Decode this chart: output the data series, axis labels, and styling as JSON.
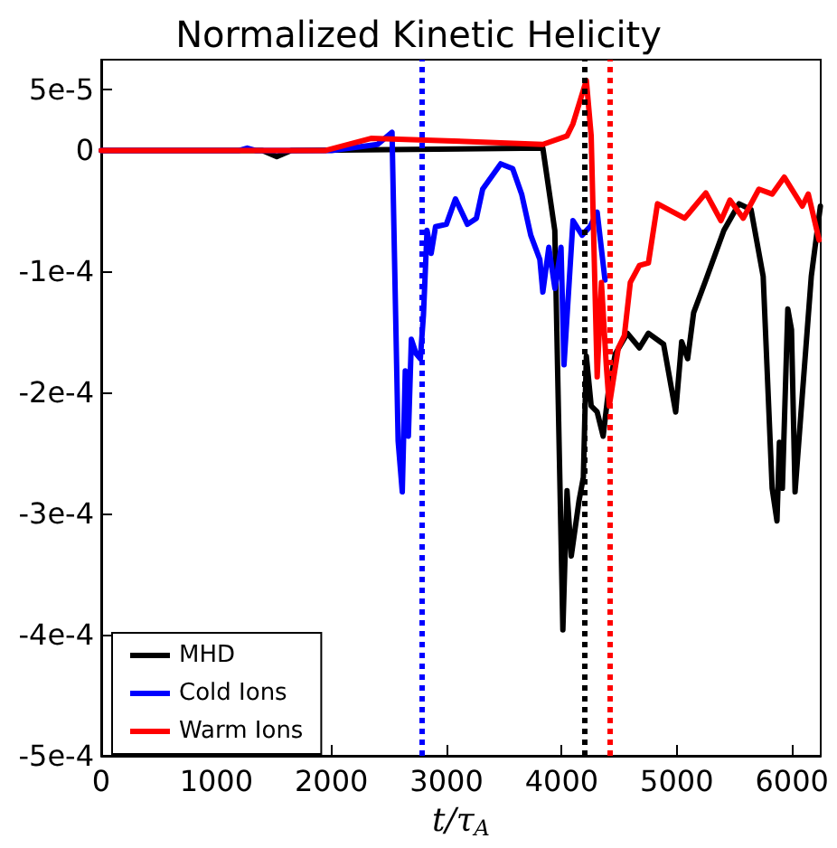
{
  "chart_data": {
    "type": "line",
    "title": "Normalized Kinetic Helicity",
    "xlabel": "t/τ$_{A}$",
    "series": [
      {
        "name": "MHD",
        "color": "#000000",
        "x": [
          0,
          1400,
          1525,
          1650,
          3836,
          3940,
          4010,
          4046,
          4083,
          4151,
          4188,
          4214,
          4256,
          4308,
          4360,
          4403,
          4465,
          4570,
          4675,
          4753,
          4885,
          4990,
          5042,
          5094,
          5146,
          5252,
          5409,
          5540,
          5645,
          5750,
          5828,
          5870,
          5891,
          5917,
          5964,
          5996,
          6027,
          6090,
          6168,
          6247
        ],
        "values": [
          0,
          0,
          -5e-06,
          0,
          2e-06,
          -6.6e-05,
          -0.000396,
          -0.000281,
          -0.000335,
          -0.000289,
          -0.00027,
          -0.00017,
          -0.000211,
          -0.000216,
          -0.000236,
          -0.000201,
          -0.000168,
          -0.000151,
          -0.000163,
          -0.000151,
          -0.00016,
          -0.000216,
          -0.000158,
          -0.000172,
          -0.000134,
          -0.000107,
          -6.6e-05,
          -4.4e-05,
          -4.9e-05,
          -0.000104,
          -0.000279,
          -0.000306,
          -0.000241,
          -0.000279,
          -0.000131,
          -0.000148,
          -0.000282,
          -0.000202,
          -0.000104,
          -4.6e-05
        ]
      },
      {
        "name": "Cold Ions",
        "color": "#0000ff",
        "x": [
          0,
          1200,
          1268,
          1340,
          2000,
          2400,
          2526,
          2579,
          2615,
          2641,
          2668,
          2694,
          2736,
          2772,
          2799,
          2830,
          2866,
          2904,
          2998,
          3077,
          3181,
          3259,
          3313,
          3470,
          3574,
          3652,
          3731,
          3810,
          3836,
          3888,
          3941,
          3994,
          4020,
          4098,
          4177,
          4245,
          4308,
          4376
        ],
        "values": [
          0,
          0,
          2e-06,
          0,
          0,
          5e-06,
          1.5e-05,
          -0.00024,
          -0.000282,
          -0.000182,
          -0.000236,
          -0.000156,
          -0.000168,
          -0.000172,
          -0.000136,
          -6.6e-05,
          -8.5e-05,
          -6.3e-05,
          -6.1e-05,
          -4e-05,
          -6.1e-05,
          -5.6e-05,
          -3.2e-05,
          -1.1e-05,
          -1.5e-05,
          -3.6e-05,
          -7e-05,
          -9e-05,
          -0.000117,
          -8e-05,
          -0.000114,
          -8e-05,
          -0.000177,
          -5.8e-05,
          -7e-05,
          -6.3e-05,
          -5.1e-05,
          -0.000107
        ]
      },
      {
        "name": "Warm Ions",
        "color": "#ff0000",
        "x": [
          0,
          1950,
          2343,
          3000,
          3836,
          4046,
          4098,
          4214,
          4256,
          4308,
          4345,
          4387,
          4413,
          4492,
          4544,
          4596,
          4675,
          4753,
          4832,
          5068,
          5252,
          5383,
          5461,
          5577,
          5713,
          5828,
          5933,
          6090,
          6142,
          6236
        ],
        "values": [
          0,
          0,
          1e-05,
          8e-06,
          5e-06,
          1.2e-05,
          2.2e-05,
          5.8e-05,
          1.2e-05,
          -0.000187,
          -0.000109,
          -0.000177,
          -0.000211,
          -0.000163,
          -0.000153,
          -0.000109,
          -9.5e-05,
          -9.3e-05,
          -4.4e-05,
          -5.6e-05,
          -3.5e-05,
          -5.8e-05,
          -4.1e-05,
          -5.6e-05,
          -3.2e-05,
          -3.6e-05,
          -2.2e-05,
          -4.6e-05,
          -3.6e-05,
          -7.4e-05
        ]
      }
    ],
    "ref_lines": [
      {
        "axis": "x",
        "value": 2780,
        "color": "#0000ff",
        "line_style": "dotted"
      },
      {
        "axis": "x",
        "value": 4200,
        "color": "#000000",
        "line_style": "dotted"
      },
      {
        "axis": "x",
        "value": 4420,
        "color": "#ff0000",
        "line_style": "dotted"
      }
    ],
    "xlim": [
      0,
      6250
    ],
    "xticks": [
      0,
      1000,
      2000,
      3000,
      4000,
      5000,
      6000
    ],
    "ylim": [
      -0.0005,
      7.5e-05
    ],
    "yticks": [
      {
        "value": -0.0005,
        "label": "-5e-4"
      },
      {
        "value": -0.0004,
        "label": "-4e-4"
      },
      {
        "value": -0.0003,
        "label": "-3e-4"
      },
      {
        "value": -0.0002,
        "label": "-2e-4"
      },
      {
        "value": -0.0001,
        "label": "-1e-4"
      },
      0,
      {
        "value": 5e-05,
        "label": "5e-5"
      }
    ],
    "grid": false,
    "legend": "bottom left",
    "marker": "none",
    "line_style": "solid"
  }
}
